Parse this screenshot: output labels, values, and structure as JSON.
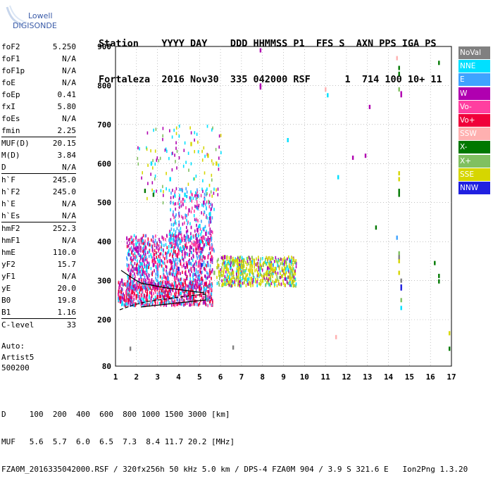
{
  "logo": {
    "line1": "Lowell",
    "line2": "DIGISONDE"
  },
  "header": {
    "row1": "Station    YYYY DAY    DDD HHMMSS P1  FFS S  AXN PPS IGA PS",
    "row2": "Fortaleza  2016 Nov30  335 042000 RSF      1  714 100 10+ 11"
  },
  "params": {
    "group1": [
      {
        "name": "foF2",
        "value": "5.250"
      },
      {
        "name": "foF1",
        "value": "N/A"
      },
      {
        "name": "foF1p",
        "value": "N/A"
      },
      {
        "name": "foE",
        "value": "N/A"
      },
      {
        "name": "foEp",
        "value": "0.41"
      },
      {
        "name": "fxI",
        "value": "5.80"
      },
      {
        "name": "foEs",
        "value": "N/A"
      },
      {
        "name": "fmin",
        "value": "2.25"
      }
    ],
    "group2": [
      {
        "name": "MUF(D)",
        "value": "20.15"
      },
      {
        "name": "M(D)",
        "value": "3.84"
      },
      {
        "name": "D",
        "value": "N/A"
      }
    ],
    "group3": [
      {
        "name": "h`F",
        "value": "245.0"
      },
      {
        "name": "h`F2",
        "value": "245.0"
      },
      {
        "name": "h`E",
        "value": "N/A"
      },
      {
        "name": "h`Es",
        "value": "N/A"
      }
    ],
    "group4": [
      {
        "name": "hmF2",
        "value": "252.3"
      },
      {
        "name": "hmF1",
        "value": "N/A"
      },
      {
        "name": "hmE",
        "value": "110.0"
      },
      {
        "name": "yF2",
        "value": "15.7"
      },
      {
        "name": "yF1",
        "value": "N/A"
      },
      {
        "name": "yE",
        "value": "20.0"
      },
      {
        "name": "B0",
        "value": "19.8"
      },
      {
        "name": "B1",
        "value": "1.16"
      }
    ],
    "group5": [
      {
        "name": "C-level",
        "value": "33"
      }
    ]
  },
  "auto": {
    "line1": "Auto:",
    "line2": "Artist5",
    "line3": "500200"
  },
  "legend": [
    {
      "label": "NoVal",
      "color": "#808080"
    },
    {
      "label": "NNE",
      "color": "#00e0ff"
    },
    {
      "label": "E",
      "color": "#3fa3ff"
    },
    {
      "label": "W",
      "color": "#b000b0"
    },
    {
      "label": "Vo-",
      "color": "#ff3fa0"
    },
    {
      "label": "Vo+",
      "color": "#f0003a"
    },
    {
      "label": "SSW",
      "color": "#ffb0b0"
    },
    {
      "label": "X-",
      "color": "#007800"
    },
    {
      "label": "X+",
      "color": "#80c060"
    },
    {
      "label": "SSE",
      "color": "#d6d600"
    },
    {
      "label": "NNW",
      "color": "#2020e0"
    }
  ],
  "bottom": {
    "line1": "D     100  200  400  600  800 1000 1500 3000 [km]",
    "line2": "MUF   5.6  5.7  6.0  6.5  7.3  8.4 11.7 20.2 [MHz]",
    "line3": "FZA0M_2016335042000.RSF / 320fx256h 50 kHz 5.0 km / DPS-4 FZA0M 904 / 3.9 S 321.6 E   Ion2Png 1.3.20"
  },
  "chart_data": {
    "type": "scatter",
    "x_ticks": [
      "1",
      "2",
      "3",
      "4",
      "5",
      "6",
      "7",
      "8",
      "9",
      "10",
      "11",
      "12",
      "13",
      "14",
      "15",
      "16",
      "17"
    ],
    "y_ticks": [
      "80",
      "200",
      "300",
      "400",
      "500",
      "600",
      "700",
      "800",
      "900"
    ],
    "xlim": [
      1,
      17
    ],
    "ylim": [
      80,
      900
    ],
    "x_unit": "MHz",
    "y_unit": "km",
    "grid": "dotted",
    "legend_position": "right",
    "series": [
      {
        "name": "Vo+",
        "points": [
          [
            1.2,
            255
          ],
          [
            1.6,
            250
          ],
          [
            2.0,
            260
          ],
          [
            2.5,
            265
          ],
          [
            3.0,
            258
          ],
          [
            3.5,
            262
          ],
          [
            4.0,
            270
          ],
          [
            4.5,
            268
          ],
          [
            5.0,
            280
          ],
          [
            5.3,
            290
          ],
          [
            1.8,
            270
          ],
          [
            2.2,
            280
          ],
          [
            3.2,
            275
          ],
          [
            4.2,
            290
          ],
          [
            5.1,
            305
          ],
          [
            5.5,
            320
          ]
        ]
      },
      {
        "name": "Vo-",
        "points": [
          [
            1.5,
            270
          ],
          [
            2.0,
            290
          ],
          [
            2.6,
            300
          ],
          [
            3.3,
            310
          ],
          [
            4.0,
            320
          ],
          [
            4.6,
            330
          ],
          [
            5.0,
            350
          ],
          [
            5.4,
            360
          ],
          [
            5.6,
            380
          ],
          [
            5.2,
            410
          ],
          [
            4.8,
            395
          ],
          [
            4.0,
            370
          ],
          [
            3.0,
            340
          ],
          [
            2.4,
            320
          ]
        ]
      },
      {
        "name": "W",
        "points": [
          [
            1.3,
            300
          ],
          [
            2.0,
            330
          ],
          [
            2.8,
            340
          ],
          [
            3.6,
            350
          ],
          [
            4.3,
            370
          ],
          [
            5.0,
            390
          ],
          [
            5.3,
            420
          ],
          [
            5.5,
            460
          ],
          [
            5.2,
            500
          ],
          [
            4.9,
            430
          ],
          [
            4.5,
            480
          ],
          [
            6.2,
            360
          ],
          [
            7.9,
            890
          ],
          [
            7.9,
            800
          ],
          [
            7.9,
            795
          ],
          [
            12.3,
            615
          ],
          [
            12.9,
            620
          ],
          [
            13.1,
            745
          ],
          [
            14.6,
            775
          ],
          [
            14.6,
            780
          ]
        ]
      },
      {
        "name": "E",
        "points": [
          [
            1.6,
            290
          ],
          [
            2.2,
            310
          ],
          [
            3.0,
            320
          ],
          [
            3.8,
            335
          ],
          [
            4.5,
            345
          ],
          [
            5.0,
            360
          ],
          [
            5.4,
            340
          ],
          [
            4.7,
            315
          ],
          [
            3.5,
            305
          ],
          [
            14.4,
            410
          ]
        ]
      },
      {
        "name": "NNE",
        "points": [
          [
            2.1,
            330
          ],
          [
            3.1,
            350
          ],
          [
            4.1,
            380
          ],
          [
            4.6,
            410
          ],
          [
            5.0,
            440
          ],
          [
            5.5,
            470
          ],
          [
            4.3,
            520
          ],
          [
            3.6,
            560
          ],
          [
            2.7,
            600
          ],
          [
            9.2,
            660
          ],
          [
            11.1,
            775
          ],
          [
            11.6,
            565
          ],
          [
            14.6,
            230
          ]
        ]
      },
      {
        "name": "SSE",
        "points": [
          [
            6.3,
            330
          ],
          [
            6.6,
            320
          ],
          [
            7.0,
            335
          ],
          [
            7.4,
            325
          ],
          [
            7.8,
            315
          ],
          [
            8.2,
            320
          ],
          [
            8.6,
            330
          ],
          [
            9.0,
            325
          ],
          [
            9.3,
            310
          ],
          [
            6.8,
            350
          ],
          [
            7.6,
            345
          ],
          [
            8.4,
            340
          ],
          [
            6.5,
            300
          ],
          [
            7.2,
            305
          ],
          [
            8.0,
            300
          ],
          [
            6.1,
            290
          ],
          [
            5.8,
            600
          ],
          [
            5.4,
            620
          ],
          [
            4.6,
            650
          ],
          [
            14.5,
            560
          ],
          [
            14.5,
            575
          ],
          [
            14.5,
            350
          ],
          [
            14.5,
            320
          ],
          [
            16.9,
            165
          ]
        ]
      },
      {
        "name": "X-",
        "points": [
          [
            14.5,
            830
          ],
          [
            14.5,
            845
          ],
          [
            14.5,
            520
          ],
          [
            14.5,
            530
          ],
          [
            13.4,
            436
          ],
          [
            16.2,
            345
          ],
          [
            16.4,
            298
          ],
          [
            16.4,
            312
          ],
          [
            16.4,
            858
          ],
          [
            16.9,
            125
          ],
          [
            2.4,
            530
          ],
          [
            2.8,
            520
          ]
        ]
      },
      {
        "name": "X+",
        "points": [
          [
            14.5,
            790
          ],
          [
            14.5,
            370
          ],
          [
            14.6,
            250
          ],
          [
            5.7,
            320
          ],
          [
            6.6,
            345
          ]
        ]
      },
      {
        "name": "SSW",
        "points": [
          [
            14.4,
            870
          ],
          [
            11.5,
            155
          ],
          [
            11.0,
            790
          ]
        ]
      },
      {
        "name": "NoVal",
        "points": [
          [
            1.7,
            125
          ],
          [
            6.6,
            128
          ],
          [
            14.5,
            360
          ],
          [
            14.6,
            300
          ]
        ]
      },
      {
        "name": "NNW",
        "points": [
          [
            14.6,
            280
          ],
          [
            14.6,
            285
          ],
          [
            4.0,
            330
          ],
          [
            5.1,
            340
          ]
        ]
      }
    ]
  }
}
